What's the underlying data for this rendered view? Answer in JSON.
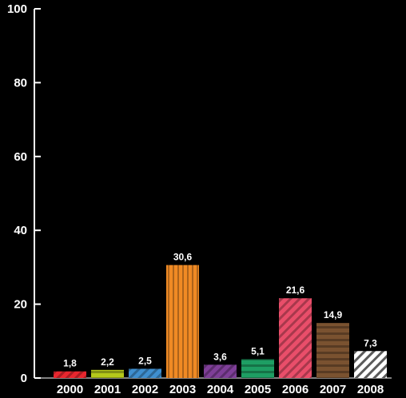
{
  "chart_data": {
    "type": "bar",
    "title": "",
    "xlabel": "",
    "ylabel": "",
    "ylim": [
      0,
      100
    ],
    "yticks": [
      0,
      20,
      40,
      60,
      80,
      100
    ],
    "grid": false,
    "categories": [
      "2000",
      "2001",
      "2002",
      "2003",
      "2004",
      "2005",
      "2006",
      "2007",
      "2008"
    ],
    "values": [
      1.8,
      2.2,
      2.5,
      30.6,
      3.6,
      5.1,
      21.6,
      14.9,
      7.3
    ],
    "data_labels": [
      "1,8",
      "2,2",
      "2,5",
      "30,6",
      "3,6",
      "5,1",
      "21,6",
      "14,9",
      "7,3"
    ],
    "bar_colors": [
      "#e8262e",
      "#b5c81a",
      "#3f8fd0",
      "#f08a24",
      "#7f3f98",
      "#1e9e63",
      "#e94e6a",
      "#7a5230",
      "#ffffff"
    ],
    "bar_patterns": [
      "diagonal",
      "horizontal",
      "diagonal",
      "vertical",
      "diagonal",
      "horizontal",
      "diagonal",
      "horizontal",
      "diagonal"
    ],
    "background_color": "#000000",
    "axis_color": "#ffffff"
  }
}
